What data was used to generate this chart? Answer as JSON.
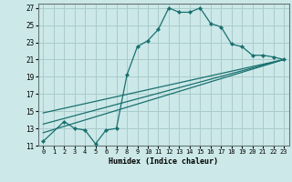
{
  "xlabel": "Humidex (Indice chaleur)",
  "bg_color": "#cce8e8",
  "grid_color": "#aacccc",
  "line_color": "#1a7070",
  "xlim": [
    -0.5,
    23.5
  ],
  "ylim": [
    11,
    27.5
  ],
  "xticks": [
    0,
    1,
    2,
    3,
    4,
    5,
    6,
    7,
    8,
    9,
    10,
    11,
    12,
    13,
    14,
    15,
    16,
    17,
    18,
    19,
    20,
    21,
    22,
    23
  ],
  "yticks": [
    11,
    13,
    15,
    17,
    19,
    21,
    23,
    25,
    27
  ],
  "series1_x": [
    0,
    2,
    3,
    4,
    5,
    6,
    7,
    8,
    9,
    10,
    11,
    12,
    13,
    14,
    15,
    16,
    17,
    18,
    19,
    20,
    21,
    22,
    23
  ],
  "series1_y": [
    11.5,
    13.8,
    13.0,
    12.8,
    11.2,
    12.8,
    13.0,
    19.2,
    22.5,
    23.2,
    24.5,
    27.0,
    26.5,
    26.5,
    27.0,
    25.2,
    24.8,
    22.8,
    22.5,
    21.5,
    21.5,
    21.3,
    21.0
  ],
  "line1_x": [
    0,
    23
  ],
  "line1_y": [
    12.5,
    21.0
  ],
  "line2_x": [
    0,
    23
  ],
  "line2_y": [
    13.5,
    21.0
  ],
  "line3_x": [
    0,
    23
  ],
  "line3_y": [
    14.8,
    21.0
  ]
}
